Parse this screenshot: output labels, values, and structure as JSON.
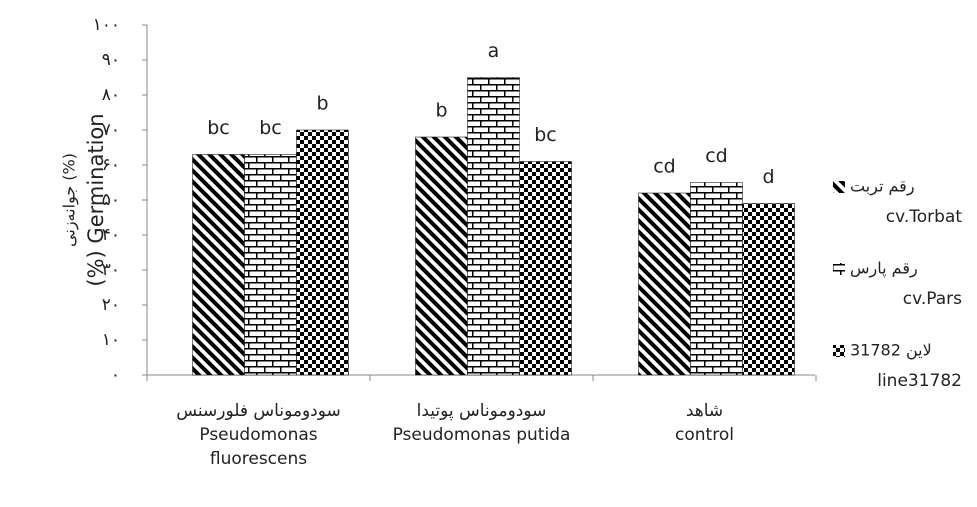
{
  "chart_data": {
    "type": "bar",
    "y_title": [
      "جوانه‌زنی (%)",
      "(%) Germination"
    ],
    "categories": [
      [
        "سودوموناس فلورسنس",
        "Pseudomonas",
        "fluorescens"
      ],
      [
        "سودوموناس پوتیدا",
        "Pseudomonas putida"
      ],
      [
        "شاهد",
        "control"
      ]
    ],
    "series": [
      {
        "name": [
          "رقم تربت",
          "cv.Torbat"
        ],
        "color": "#000000",
        "pattern": "diagonal",
        "values": [
          63,
          68,
          52
        ],
        "letters": [
          "bc",
          "b",
          "cd"
        ]
      },
      {
        "name": [
          "رقم پارس",
          "cv.Pars"
        ],
        "color": "#000000",
        "pattern": "brick",
        "values": [
          63,
          85,
          55
        ],
        "letters": [
          "bc",
          "a",
          "cd"
        ]
      },
      {
        "name": [
          "لاین 31782",
          "line31782"
        ],
        "color": "#000000",
        "pattern": "checker",
        "values": [
          70,
          61,
          49
        ],
        "letters": [
          "b",
          "bc",
          "d"
        ]
      }
    ],
    "ylim": [
      0,
      100
    ],
    "yticks": [
      {
        "value": 0,
        "label": "۰"
      },
      {
        "value": 10,
        "label": "۱۰"
      },
      {
        "value": 20,
        "label": "۲۰"
      },
      {
        "value": 30,
        "label": "۳۰"
      },
      {
        "value": 40,
        "label": "۴۰"
      },
      {
        "value": 50,
        "label": "۵۰"
      },
      {
        "value": 60,
        "label": "۶۰"
      },
      {
        "value": 70,
        "label": "۷۰"
      },
      {
        "value": 80,
        "label": "۸۰"
      },
      {
        "value": 90,
        "label": "۹۰"
      },
      {
        "value": 100,
        "label": "۱۰۰"
      }
    ],
    "grid": false,
    "legend": "right"
  }
}
